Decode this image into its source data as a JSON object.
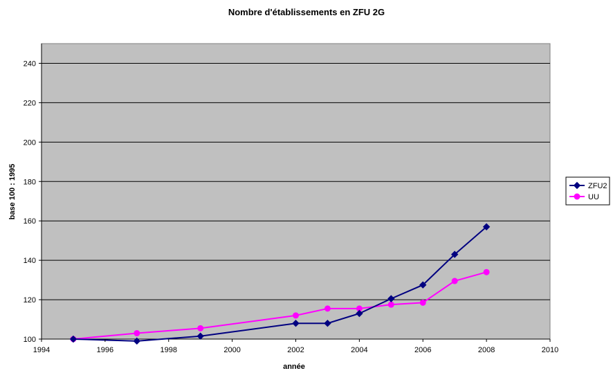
{
  "chart_data": {
    "type": "line",
    "title": "Nombre d'établissements en ZFU 2G",
    "xlabel": "année",
    "ylabel": "base 100 : 1995",
    "xlim": [
      1994,
      2010
    ],
    "ylim": [
      100,
      250
    ],
    "x_ticks": [
      1994,
      1996,
      1998,
      2000,
      2002,
      2004,
      2006,
      2008,
      2010
    ],
    "y_ticks": [
      100,
      120,
      140,
      160,
      180,
      200,
      220,
      240
    ],
    "grid": "horizontal",
    "legend_position": "right",
    "plot_background": "#c0c0c0",
    "series": [
      {
        "name": "ZFU2",
        "color": "#000080",
        "marker": "diamond",
        "x": [
          1995,
          1997,
          1999,
          2002,
          2003,
          2004,
          2005,
          2006,
          2007,
          2008
        ],
        "y": [
          100,
          99,
          101.5,
          108,
          108,
          113,
          120.5,
          127.5,
          143,
          157
        ]
      },
      {
        "name": "UU",
        "color": "#ff00ff",
        "marker": "circle",
        "x": [
          1995,
          1997,
          1999,
          2002,
          2003,
          2004,
          2005,
          2006,
          2007,
          2008
        ],
        "y": [
          100,
          103,
          105.5,
          112,
          115.5,
          115.5,
          117.5,
          118.5,
          129.5,
          134
        ]
      }
    ]
  }
}
